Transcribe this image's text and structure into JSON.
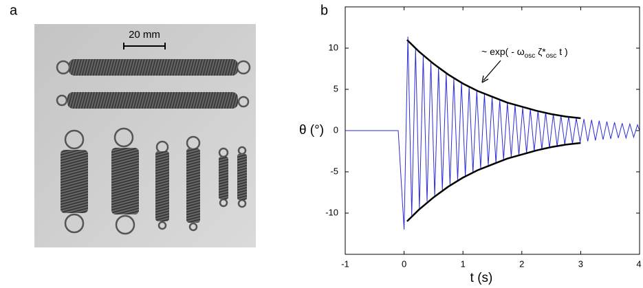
{
  "panel_a": {
    "label": "a",
    "scale_bar": "20 mm"
  },
  "chart_data": {
    "type": "line",
    "panel_label": "b",
    "xlabel": "t (s)",
    "ylabel": "θ (°)",
    "annotation": [
      {
        "text": "~ exp( - ω"
      },
      {
        "text": "osc",
        "sub": true
      },
      {
        "text": " ζ*"
      },
      {
        "text": "osc",
        "sub": true
      },
      {
        "text": " t )"
      }
    ],
    "xlim": [
      -1,
      4
    ],
    "ylim": [
      -15,
      15
    ],
    "xticks": [
      -1,
      0,
      1,
      2,
      3,
      4
    ],
    "yticks": [
      -10,
      -5,
      0,
      5,
      10
    ],
    "series": [
      {
        "color": "#2b2bd6",
        "x": [
          -1,
          -0.1,
          0,
          0.065,
          0.13,
          0.195,
          0.26,
          0.325,
          0.39,
          0.455,
          0.52,
          0.585,
          0.65,
          0.715,
          0.78,
          0.845,
          0.91,
          0.975,
          1.04,
          1.105,
          1.17,
          1.235,
          1.3,
          1.365,
          1.43,
          1.495,
          1.56,
          1.625,
          1.69,
          1.755,
          1.82,
          1.885,
          1.95,
          2.015,
          2.08,
          2.145,
          2.21,
          2.275,
          2.34,
          2.405,
          2.47,
          2.535,
          2.6,
          2.665,
          2.73,
          2.795,
          2.86,
          2.925,
          2.99,
          3.055,
          3.12,
          3.185,
          3.25,
          3.315,
          3.38,
          3.445,
          3.51,
          3.575,
          3.64,
          3.705,
          3.77,
          3.835,
          3.9,
          3.965,
          4
        ],
        "values": [
          0,
          0,
          -12,
          11.4,
          -10.3,
          9.9,
          -9.5,
          9.0,
          -8.6,
          8.3,
          -7.9,
          7.6,
          -7.2,
          6.9,
          -6.6,
          6.3,
          -6.0,
          5.8,
          -5.5,
          5.3,
          -5.1,
          4.8,
          -4.6,
          4.4,
          -4.2,
          4.0,
          -3.9,
          3.7,
          -3.5,
          3.4,
          -3.2,
          3.1,
          -3.0,
          2.8,
          -2.7,
          2.6,
          -2.5,
          2.4,
          -2.3,
          2.2,
          -2.1,
          2.0,
          -1.9,
          1.8,
          -1.7,
          1.7,
          -1.6,
          1.5,
          -1.4,
          1.4,
          -1.3,
          1.3,
          -1.2,
          1.2,
          -1.1,
          1.1,
          -1.0,
          1.0,
          -0.9,
          0.9,
          -0.9,
          0.8,
          -0.8,
          0.7,
          0
        ],
        "width": 1
      },
      {
        "color": "#000000",
        "x": [
          0.05,
          0.25,
          0.5,
          0.75,
          1,
          1.25,
          1.5,
          1.75,
          2,
          2.25,
          2.5,
          2.75,
          3
        ],
        "values": [
          11.0,
          9.6,
          8.1,
          6.8,
          5.7,
          4.8,
          4.1,
          3.4,
          2.9,
          2.4,
          2.0,
          1.7,
          1.5
        ],
        "width": 2.5
      },
      {
        "color": "#000000",
        "x": [
          0.05,
          0.25,
          0.5,
          0.75,
          1,
          1.25,
          1.5,
          1.75,
          2,
          2.25,
          2.5,
          2.75,
          3
        ],
        "values": [
          -11.0,
          -9.6,
          -8.1,
          -6.8,
          -5.7,
          -4.8,
          -4.1,
          -3.4,
          -2.9,
          -2.4,
          -2.0,
          -1.7,
          -1.5
        ],
        "width": 2.5
      }
    ]
  }
}
